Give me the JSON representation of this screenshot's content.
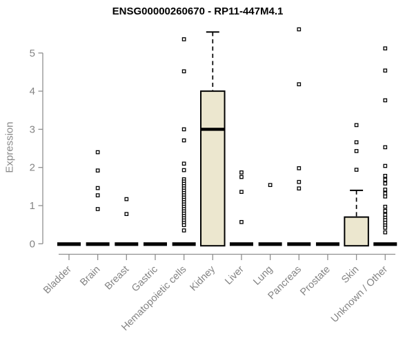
{
  "chart_data": {
    "type": "boxplot",
    "title": "ENSG00000260670 - RP11-447M4.1",
    "ylabel": "Expression",
    "xlabel": "",
    "ylim": [
      0,
      5.65
    ],
    "yticks": [
      0,
      1,
      2,
      3,
      4,
      5
    ],
    "grid": false,
    "legend": false,
    "point_style": "open-square",
    "colors": {
      "box_fill": "#ece7cf",
      "box_border": "#000000",
      "median": "#000000",
      "outlier_fill": "#ffffff",
      "outlier_border": "#000000",
      "axis": "#8f8f8f",
      "text": "#838383",
      "title_text": "#000000",
      "background": "#ffffff"
    },
    "categories": [
      "Bladder",
      "Brain",
      "Breast",
      "Gastric",
      "Hematopoietic cells",
      "Kidney",
      "Liver",
      "Lung",
      "Pancreas",
      "Prostate",
      "Skin",
      "Unknown / Other"
    ],
    "series": [
      {
        "label": "Bladder",
        "q1": 0,
        "median": 0,
        "q3": 0,
        "whisker_low": 0,
        "whisker_high": 0,
        "outliers": []
      },
      {
        "label": "Brain",
        "q1": 0,
        "median": 0,
        "q3": 0,
        "whisker_low": 0,
        "whisker_high": 0,
        "outliers": [
          2.4,
          1.92,
          1.46,
          1.27,
          0.91
        ]
      },
      {
        "label": "Breast",
        "q1": 0,
        "median": 0,
        "q3": 0,
        "whisker_low": 0,
        "whisker_high": 0,
        "outliers": [
          1.17,
          0.78
        ]
      },
      {
        "label": "Gastric",
        "q1": 0,
        "median": 0,
        "q3": 0,
        "whisker_low": 0,
        "whisker_high": 0,
        "outliers": []
      },
      {
        "label": "Hematopoietic cells",
        "q1": 0,
        "median": 0,
        "q3": 0,
        "whisker_low": 0,
        "whisker_high": 0,
        "outliers": [
          5.36,
          4.52,
          3.0,
          2.71,
          2.1,
          1.93,
          1.69,
          1.63,
          1.57,
          1.51,
          1.45,
          1.39,
          1.33,
          1.27,
          1.21,
          1.15,
          1.09,
          1.03,
          0.97,
          0.91,
          0.85,
          0.79,
          0.73,
          0.67,
          0.61,
          0.55,
          0.49,
          0.35
        ]
      },
      {
        "label": "Kidney",
        "q1": 0,
        "median": 3.0,
        "q3": 4.0,
        "whisker_low": 0,
        "whisker_high": 5.55,
        "outliers": []
      },
      {
        "label": "Liver",
        "q1": 0,
        "median": 0,
        "q3": 0,
        "whisker_low": 0,
        "whisker_high": 0,
        "outliers": [
          1.87,
          1.75,
          1.36,
          0.57
        ]
      },
      {
        "label": "Lung",
        "q1": 0,
        "median": 0,
        "q3": 0,
        "whisker_low": 0,
        "whisker_high": 0,
        "outliers": [
          1.54
        ]
      },
      {
        "label": "Pancreas",
        "q1": 0,
        "median": 0,
        "q3": 0,
        "whisker_low": 0,
        "whisker_high": 0,
        "outliers": [
          5.62,
          4.18,
          1.98,
          1.62,
          1.45
        ]
      },
      {
        "label": "Prostate",
        "q1": 0,
        "median": 0,
        "q3": 0,
        "whisker_low": 0,
        "whisker_high": 0,
        "outliers": []
      },
      {
        "label": "Skin",
        "q1": 0,
        "median": 0,
        "q3": 0.7,
        "whisker_low": 0,
        "whisker_high": 1.4,
        "outliers": [
          3.11,
          2.66,
          2.43,
          1.94
        ]
      },
      {
        "label": "Unknown / Other",
        "q1": 0,
        "median": 0,
        "q3": 0,
        "whisker_low": 0,
        "whisker_high": 0,
        "outliers": [
          5.12,
          4.54,
          3.76,
          2.53,
          2.04,
          1.78,
          1.68,
          1.58,
          1.42,
          1.32,
          1.24,
          0.97,
          0.86,
          0.76,
          0.68,
          0.62,
          0.55,
          0.48,
          0.42,
          0.3
        ]
      }
    ]
  }
}
